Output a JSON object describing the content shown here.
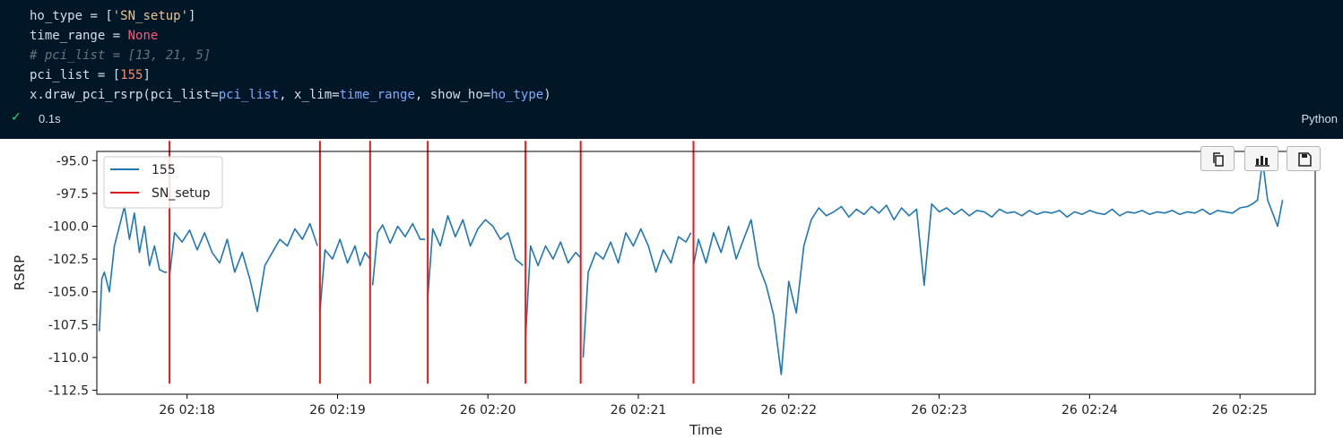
{
  "code": {
    "line1": {
      "var": "ho_type",
      "op": " = ",
      "open": "[",
      "str": "'SN_setup'",
      "close": "]"
    },
    "line2": {
      "var": "time_range",
      "op": " = ",
      "value": "None"
    },
    "line3": {
      "comment": "# pci_list = [13, 21, 5]"
    },
    "line4": {
      "var": "pci_list",
      "op": " = ",
      "open": "[",
      "num": "155",
      "close": "]"
    },
    "line5": {
      "pre": "x.draw_pci_rsrp(pci_list=",
      "arg1": "pci_list",
      "mid1": ", x_lim=",
      "arg2": "time_range",
      "mid2": ", show_ho=",
      "arg3": "ho_type",
      "post": ")"
    }
  },
  "status": {
    "duration": "0.1s",
    "language": "Python"
  },
  "toolbar": [
    {
      "name": "copy-icon"
    },
    {
      "name": "bar-chart-icon"
    },
    {
      "name": "save-icon"
    }
  ],
  "colors": {
    "series": "#1f77b4",
    "ho": "#e31a1c"
  },
  "chart_data": {
    "type": "line",
    "title": "",
    "xlabel": "Time",
    "ylabel": "RSRP",
    "xlim": [
      "02:17:24",
      "02:25:30"
    ],
    "ylim": [
      -112.8,
      -94.3
    ],
    "x_ticks": [
      "26 02:18",
      "26 02:19",
      "26 02:20",
      "26 02:21",
      "26 02:22",
      "26 02:23",
      "26 02:24",
      "26 02:25"
    ],
    "x_tick_times": [
      "02:18:00",
      "02:19:00",
      "02:20:00",
      "02:21:00",
      "02:22:00",
      "02:23:00",
      "02:24:00",
      "02:25:00"
    ],
    "y_ticks": [
      "-95.0",
      "-97.5",
      "-100.0",
      "-102.5",
      "-105.0",
      "-107.5",
      "-110.0",
      "-112.5"
    ],
    "y_tick_values": [
      -95.0,
      -97.5,
      -100.0,
      -102.5,
      -105.0,
      -107.5,
      -110.0,
      -112.5
    ],
    "legend": {
      "placement": "upper-left",
      "entries": [
        "155",
        "SN_setup"
      ]
    },
    "grid": false,
    "series": [
      {
        "name": "155",
        "segments": [
          {
            "x": [
              "02:17:25",
              "02:17:26",
              "02:17:27",
              "02:17:29",
              "02:17:31",
              "02:17:33",
              "02:17:35",
              "02:17:37",
              "02:17:39",
              "02:17:41",
              "02:17:43",
              "02:17:45",
              "02:17:47",
              "02:17:49",
              "02:17:51",
              "02:17:52"
            ],
            "y": [
              -108,
              -104,
              -103.5,
              -105,
              -101.5,
              -100,
              -98.5,
              -101,
              -99,
              -102,
              -100,
              -103,
              -101.5,
              -103.3,
              -103.5,
              -103.5
            ]
          },
          {
            "x": [
              "02:17:53",
              "02:17:55",
              "02:17:58",
              "02:18:01",
              "02:18:04",
              "02:18:07",
              "02:18:10",
              "02:18:13",
              "02:18:16",
              "02:18:19",
              "02:18:22",
              "02:18:25",
              "02:18:28",
              "02:18:31",
              "02:18:34",
              "02:18:37",
              "02:18:40",
              "02:18:43",
              "02:18:46",
              "02:18:49",
              "02:18:52"
            ],
            "y": [
              -103.8,
              -100.5,
              -101.2,
              -100.3,
              -101.8,
              -100.5,
              -102,
              -102.8,
              -101,
              -103.5,
              -102,
              -104,
              -106.5,
              -103,
              -102,
              -101,
              -101.5,
              -100.2,
              -101,
              -99.8,
              -101.5
            ]
          },
          {
            "x": [
              "02:18:53",
              "02:18:55",
              "02:18:58",
              "02:19:01",
              "02:19:04",
              "02:19:07",
              "02:19:09",
              "02:19:11",
              "02:19:13"
            ],
            "y": [
              -106.5,
              -101.8,
              -102.5,
              -101,
              -102.8,
              -101.5,
              -103,
              -102,
              -102.5
            ]
          },
          {
            "x": [
              "02:19:14",
              "02:19:16",
              "02:19:18",
              "02:19:21",
              "02:19:24",
              "02:19:27",
              "02:19:30",
              "02:19:33",
              "02:19:35"
            ],
            "y": [
              -104.5,
              -100.5,
              -99.9,
              -101.3,
              -100,
              -100.8,
              -99.8,
              -101,
              -101
            ]
          },
          {
            "x": [
              "02:19:36",
              "02:19:38",
              "02:19:41",
              "02:19:44",
              "02:19:47",
              "02:19:50",
              "02:19:53",
              "02:19:56",
              "02:19:59",
              "02:20:02",
              "02:20:05",
              "02:20:08",
              "02:20:11",
              "02:20:14"
            ],
            "y": [
              -105.5,
              -100.2,
              -101.5,
              -99.2,
              -100.8,
              -99.5,
              -101.5,
              -100.2,
              -99.5,
              -100,
              -101,
              -100.5,
              -102.5,
              -103
            ]
          },
          {
            "x": [
              "02:20:15",
              "02:20:17",
              "02:20:20",
              "02:20:23",
              "02:20:26",
              "02:20:29",
              "02:20:32",
              "02:20:35",
              "02:20:37"
            ],
            "y": [
              -108.5,
              -101.5,
              -103,
              -101.5,
              -102.5,
              -101.2,
              -102.8,
              -102,
              -102.4
            ]
          },
          {
            "x": [
              "02:20:38",
              "02:20:40",
              "02:20:43",
              "02:20:46",
              "02:20:49",
              "02:20:52",
              "02:20:55",
              "02:20:58",
              "02:21:01",
              "02:21:04",
              "02:21:07",
              "02:21:10",
              "02:21:13",
              "02:21:16",
              "02:21:19",
              "02:21:21"
            ],
            "y": [
              -110,
              -103.5,
              -102,
              -102.5,
              -101.2,
              -102.8,
              -100.5,
              -101.5,
              -100.2,
              -101.5,
              -103.5,
              -101.8,
              -102.8,
              -100.8,
              -101.2,
              -100.5
            ]
          },
          {
            "x": [
              "02:21:22",
              "02:21:24",
              "02:21:27",
              "02:21:30",
              "02:21:33",
              "02:21:36",
              "02:21:39",
              "02:21:42",
              "02:21:45",
              "02:21:48",
              "02:21:51",
              "02:21:54",
              "02:21:57",
              "02:22:00",
              "02:22:03",
              "02:22:06",
              "02:22:09",
              "02:22:12",
              "02:22:15",
              "02:22:18",
              "02:22:21",
              "02:22:24",
              "02:22:27",
              "02:22:30",
              "02:22:33",
              "02:22:36",
              "02:22:39",
              "02:22:42",
              "02:22:45",
              "02:22:48",
              "02:22:51",
              "02:22:54",
              "02:22:57",
              "02:23:00",
              "02:23:03",
              "02:23:06",
              "02:23:09",
              "02:23:12",
              "02:23:15",
              "02:23:18",
              "02:23:21",
              "02:23:24",
              "02:23:27",
              "02:23:30",
              "02:23:33",
              "02:23:36",
              "02:23:39",
              "02:23:42",
              "02:23:45",
              "02:23:48",
              "02:23:51",
              "02:23:54",
              "02:23:57",
              "02:24:00",
              "02:24:03",
              "02:24:06",
              "02:24:09",
              "02:24:12",
              "02:24:15",
              "02:24:18",
              "02:24:21",
              "02:24:24",
              "02:24:27",
              "02:24:30",
              "02:24:33",
              "02:24:36",
              "02:24:39",
              "02:24:42",
              "02:24:45",
              "02:24:48",
              "02:24:51",
              "02:24:54",
              "02:24:57",
              "02:25:00",
              "02:25:03",
              "02:25:05",
              "02:25:07",
              "02:25:09",
              "02:25:11",
              "02:25:13",
              "02:25:15",
              "02:25:17"
            ],
            "y": [
              -103,
              -101,
              -102.8,
              -100.5,
              -102,
              -100,
              -102.5,
              -101,
              -99.5,
              -103,
              -104.5,
              -106.8,
              -111.3,
              -104.2,
              -106.6,
              -101.5,
              -99.5,
              -98.6,
              -99.2,
              -98.9,
              -98.5,
              -99.3,
              -98.7,
              -99.1,
              -98.5,
              -99,
              -98.4,
              -99.5,
              -98.6,
              -99.2,
              -98.7,
              -104.5,
              -98.3,
              -98.9,
              -98.6,
              -99.1,
              -98.7,
              -99.2,
              -98.8,
              -98.9,
              -99.3,
              -98.7,
              -99,
              -98.9,
              -99.2,
              -98.8,
              -99.1,
              -98.9,
              -99,
              -98.8,
              -99.3,
              -98.9,
              -99.1,
              -98.8,
              -99,
              -99.1,
              -98.7,
              -99.2,
              -98.9,
              -99,
              -98.8,
              -99.1,
              -98.9,
              -99,
              -98.8,
              -99.1,
              -98.9,
              -99,
              -98.7,
              -99.1,
              -98.8,
              -98.9,
              -99,
              -98.6,
              -98.5,
              -98.3,
              -98,
              -95,
              -98,
              -99,
              -100,
              -98
            ]
          }
        ]
      }
    ],
    "handovers": [
      "02:17:53",
      "02:18:53",
      "02:19:13",
      "02:19:36",
      "02:20:15",
      "02:20:37",
      "02:21:22"
    ],
    "handover_range": [
      -112.0,
      -93.5
    ]
  }
}
